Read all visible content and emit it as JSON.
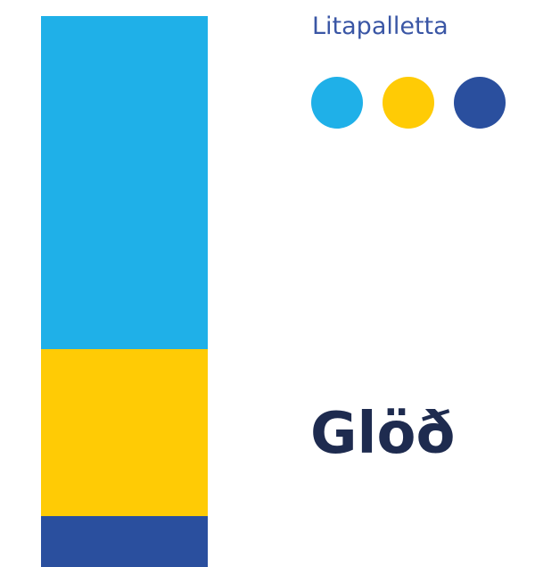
{
  "palette": {
    "title": "Litapalletta",
    "colors": [
      {
        "name": "light-blue",
        "hex": "#1fb0e8"
      },
      {
        "name": "yellow",
        "hex": "#ffcb05"
      },
      {
        "name": "dark-blue",
        "hex": "#2a4f9e"
      }
    ]
  },
  "strip": {
    "segments": [
      {
        "name": "light-blue",
        "hex": "#1fb0e8",
        "share": 0.605
      },
      {
        "name": "yellow",
        "hex": "#ffcb05",
        "share": 0.303
      },
      {
        "name": "dark-blue",
        "hex": "#2a4f9e",
        "share": 0.092
      }
    ]
  },
  "theme": {
    "name": "Glöð"
  }
}
